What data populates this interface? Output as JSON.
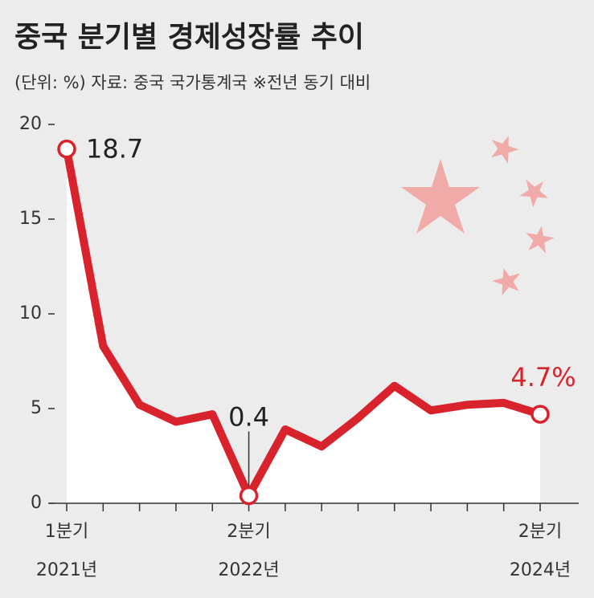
{
  "chart_data": {
    "type": "line",
    "title": "중국 분기별 경제성장률 추이",
    "subtitle": "(단위: %) 자료: 중국 국가통계국 ※전년 동기 대비",
    "categories": [
      "1분기",
      null,
      null,
      null,
      null,
      "2분기",
      null,
      null,
      null,
      null,
      null,
      null,
      null,
      "2분기"
    ],
    "category_years": [
      "2021년",
      null,
      null,
      null,
      null,
      "2022년",
      null,
      null,
      null,
      null,
      null,
      null,
      null,
      "2024년"
    ],
    "series": [
      {
        "name": "경제성장률",
        "color": "#d8232c",
        "values": [
          18.7,
          8.3,
          5.2,
          4.3,
          4.7,
          0.4,
          3.9,
          3.0,
          4.5,
          6.2,
          4.9,
          5.2,
          5.3,
          4.7
        ],
        "value_labels": [
          "18.7",
          null,
          null,
          null,
          null,
          "0.4",
          null,
          null,
          null,
          null,
          null,
          null,
          null,
          "4.7%"
        ]
      }
    ],
    "ylim": [
      0,
      20
    ],
    "yticks": [
      0,
      5,
      10,
      15,
      20
    ]
  }
}
